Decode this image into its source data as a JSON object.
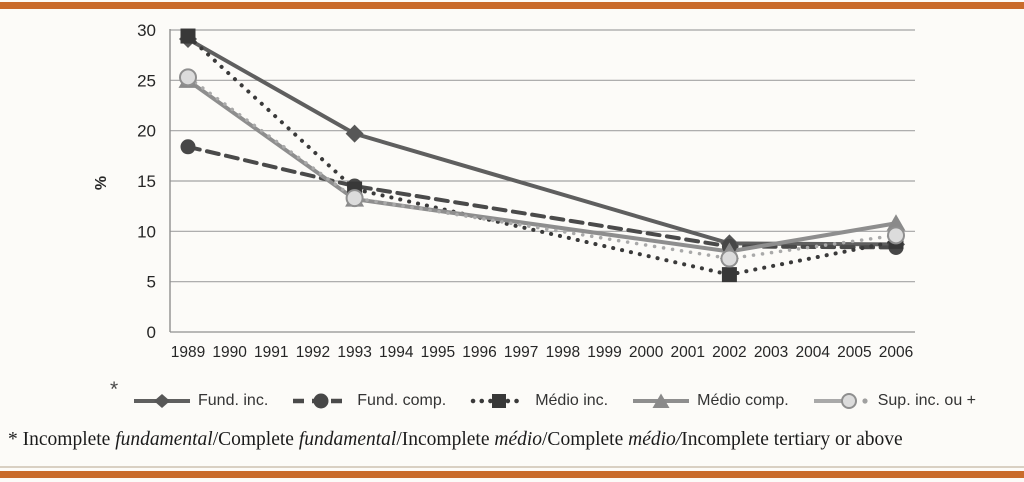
{
  "accent_color": "#c96b2b",
  "chart_data": {
    "type": "line",
    "title": "",
    "xlabel": "",
    "ylabel": "%",
    "ylim": [
      0,
      30
    ],
    "yticks": [
      0,
      5,
      10,
      15,
      20,
      25,
      30
    ],
    "grid": "horizontal",
    "legend_position": "bottom",
    "x": [
      1989,
      1993,
      2002,
      2006
    ],
    "x_axis_ticks": [
      "1989",
      "1990",
      "1991",
      "1992",
      "1993",
      "1994",
      "1995",
      "1996",
      "1997",
      "1998",
      "1999",
      "2000",
      "2001",
      "2002",
      "2003",
      "2004",
      "2005",
      "2006"
    ],
    "series": [
      {
        "name": "Fund. inc.",
        "marker": "diamond",
        "line_style": "solid",
        "color": "#5f5f5f",
        "line_width": 4,
        "values": [
          29.1,
          19.7,
          8.8,
          8.7
        ]
      },
      {
        "name": "Fund. comp.",
        "marker": "circle",
        "line_style": "dashed",
        "color": "#4a4a4a",
        "line_width": 4,
        "values": [
          18.4,
          14.5,
          8.5,
          8.4
        ]
      },
      {
        "name": "Médio inc.",
        "marker": "square",
        "line_style": "dotted",
        "color": "#3a3a3a",
        "line_width": 4,
        "values": [
          29.4,
          14.2,
          5.7,
          9.0
        ]
      },
      {
        "name": "Médio comp.",
        "marker": "triangle",
        "line_style": "solid",
        "color": "#8e8e8e",
        "line_width": 4,
        "values": [
          25.0,
          13.2,
          8.0,
          10.8
        ]
      },
      {
        "name": "Sup. inc. ou +",
        "marker": "circle-light",
        "line_style": "dotted",
        "color": "#a9a9a9",
        "line_width": 3.5,
        "marker_fill": "#dcdcdc",
        "marker_stroke": "#8f8f8f",
        "values": [
          25.3,
          13.3,
          7.3,
          9.6
        ]
      }
    ]
  },
  "legend": {
    "asterisk": "*"
  },
  "footnote": {
    "segments": [
      {
        "text": "* Incomplete ",
        "italic": false
      },
      {
        "text": "fundamental",
        "italic": true
      },
      {
        "text": "/Complete ",
        "italic": false
      },
      {
        "text": "fundamental",
        "italic": true
      },
      {
        "text": "/Incomplete ",
        "italic": false
      },
      {
        "text": "médio",
        "italic": true
      },
      {
        "text": "/Complete ",
        "italic": false
      },
      {
        "text": "médio/",
        "italic": true
      },
      {
        "text": "Incomplete tertiary or above",
        "italic": false
      }
    ]
  }
}
